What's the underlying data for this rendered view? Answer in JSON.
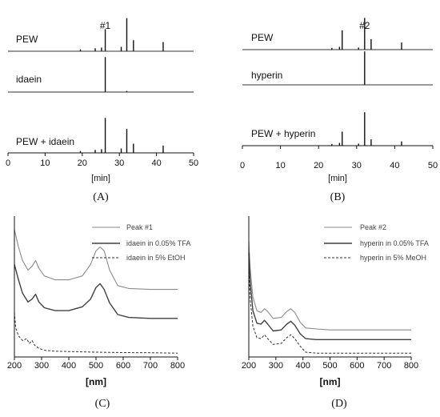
{
  "figure": {
    "panel_captions": [
      "(A)",
      "(B)",
      "(C)",
      "(D)"
    ]
  },
  "chart_data": [
    {
      "panel": "A",
      "type": "line",
      "xlabel": "[min]",
      "xlim": [
        0,
        50
      ],
      "x_ticks": [
        0,
        10,
        20,
        30,
        40,
        50
      ],
      "peak_label": "#1",
      "peak_label_x": 26.2,
      "traces": [
        {
          "name": "PEW",
          "peaks": [
            [
              19.5,
              0.05
            ],
            [
              23.5,
              0.08
            ],
            [
              25.2,
              0.1
            ],
            [
              26.2,
              0.6
            ],
            [
              30.5,
              0.12
            ],
            [
              32.0,
              0.9
            ],
            [
              33.8,
              0.3
            ],
            [
              41.8,
              0.25
            ]
          ]
        },
        {
          "name": "idaein",
          "peaks": [
            [
              26.2,
              0.95
            ],
            [
              32.0,
              0.03
            ]
          ]
        },
        {
          "name": "PEW + idaein",
          "peaks": [
            [
              19.5,
              0.05
            ],
            [
              23.5,
              0.08
            ],
            [
              25.2,
              0.1
            ],
            [
              26.2,
              0.95
            ],
            [
              30.5,
              0.12
            ],
            [
              32.0,
              0.65
            ],
            [
              33.8,
              0.25
            ],
            [
              41.8,
              0.2
            ]
          ]
        }
      ]
    },
    {
      "panel": "B",
      "type": "line",
      "xlabel": "[min]",
      "xlim": [
        0,
        50
      ],
      "x_ticks": [
        0,
        10,
        20,
        30,
        40,
        50
      ],
      "peak_label": "#2",
      "peak_label_x": 32.1,
      "traces": [
        {
          "name": "PEW",
          "peaks": [
            [
              23.5,
              0.05
            ],
            [
              25.5,
              0.08
            ],
            [
              26.2,
              0.55
            ],
            [
              30.5,
              0.06
            ],
            [
              32.1,
              0.9
            ],
            [
              33.8,
              0.3
            ],
            [
              41.8,
              0.2
            ]
          ]
        },
        {
          "name": "hyperin",
          "peaks": [
            [
              32.1,
              0.95
            ]
          ]
        },
        {
          "name": "PEW + hyperin",
          "peaks": [
            [
              23.5,
              0.05
            ],
            [
              25.5,
              0.08
            ],
            [
              26.2,
              0.4
            ],
            [
              30.5,
              0.06
            ],
            [
              32.1,
              0.95
            ],
            [
              33.8,
              0.18
            ],
            [
              41.8,
              0.12
            ]
          ]
        }
      ]
    },
    {
      "panel": "C",
      "type": "line",
      "xlabel": "[nm]",
      "xlim": [
        200,
        800
      ],
      "x_ticks": [
        200,
        300,
        400,
        500,
        600,
        700,
        800
      ],
      "series": [
        {
          "name": "Peak #1",
          "style": "solid-light",
          "x": [
            200,
            215,
            230,
            250,
            265,
            278,
            290,
            310,
            350,
            400,
            450,
            480,
            500,
            515,
            530,
            550,
            580,
            620,
            700,
            800
          ],
          "y": [
            6.6,
            5.7,
            5.0,
            4.5,
            4.7,
            5.0,
            4.6,
            4.2,
            4.0,
            4.0,
            4.2,
            4.8,
            5.5,
            5.7,
            5.5,
            4.5,
            3.7,
            3.55,
            3.5,
            3.5
          ]
        },
        {
          "name": "idaein in 0.05% TFA",
          "style": "solid-dark",
          "x": [
            200,
            215,
            230,
            250,
            265,
            278,
            290,
            310,
            350,
            400,
            450,
            480,
            500,
            515,
            530,
            550,
            580,
            620,
            700,
            800
          ],
          "y": [
            4.8,
            4.0,
            3.3,
            2.85,
            3.0,
            3.25,
            2.85,
            2.55,
            2.4,
            2.4,
            2.6,
            3.0,
            3.6,
            3.8,
            3.5,
            2.8,
            2.2,
            2.05,
            2.0,
            2.0
          ]
        },
        {
          "name": "idaein in 5% EtOH",
          "style": "dashed",
          "x": [
            200,
            205,
            215,
            230,
            245,
            255,
            265,
            275,
            290,
            310,
            350,
            400,
            500,
            600,
            700,
            800
          ],
          "y": [
            2.3,
            1.5,
            1.1,
            0.85,
            0.95,
            0.7,
            0.85,
            0.6,
            0.45,
            0.35,
            0.3,
            0.28,
            0.25,
            0.23,
            0.22,
            0.2
          ]
        }
      ]
    },
    {
      "panel": "D",
      "type": "line",
      "xlabel": "[nm]",
      "xlim": [
        200,
        800
      ],
      "x_ticks": [
        200,
        300,
        400,
        500,
        600,
        700,
        800
      ],
      "series": [
        {
          "name": "Peak #2",
          "style": "solid-light",
          "x": [
            200,
            205,
            215,
            230,
            245,
            258,
            270,
            290,
            320,
            340,
            355,
            370,
            390,
            410,
            450,
            500,
            600,
            700,
            800
          ],
          "y": [
            6.0,
            4.6,
            3.1,
            2.4,
            2.3,
            2.5,
            2.35,
            2.0,
            2.05,
            2.35,
            2.5,
            2.3,
            1.8,
            1.5,
            1.45,
            1.4,
            1.4,
            1.4,
            1.4
          ]
        },
        {
          "name": "hyperin in 0.05% TFA",
          "style": "solid-dark",
          "x": [
            200,
            205,
            215,
            230,
            245,
            258,
            270,
            290,
            320,
            340,
            355,
            370,
            390,
            410,
            450,
            500,
            600,
            700,
            800
          ],
          "y": [
            5.4,
            3.9,
            2.4,
            1.75,
            1.7,
            1.9,
            1.7,
            1.35,
            1.4,
            1.7,
            1.85,
            1.65,
            1.2,
            0.95,
            0.9,
            0.9,
            0.9,
            0.9,
            0.9
          ]
        },
        {
          "name": "hyperin in 5% MeOH",
          "style": "dashed",
          "x": [
            200,
            205,
            215,
            230,
            245,
            258,
            270,
            290,
            320,
            340,
            355,
            370,
            390,
            410,
            450,
            500,
            600,
            700,
            800
          ],
          "y": [
            4.6,
            3.0,
            1.6,
            1.0,
            0.95,
            1.15,
            0.95,
            0.65,
            0.7,
            1.0,
            1.15,
            0.95,
            0.55,
            0.25,
            0.2,
            0.2,
            0.2,
            0.2,
            0.2
          ]
        }
      ]
    }
  ]
}
